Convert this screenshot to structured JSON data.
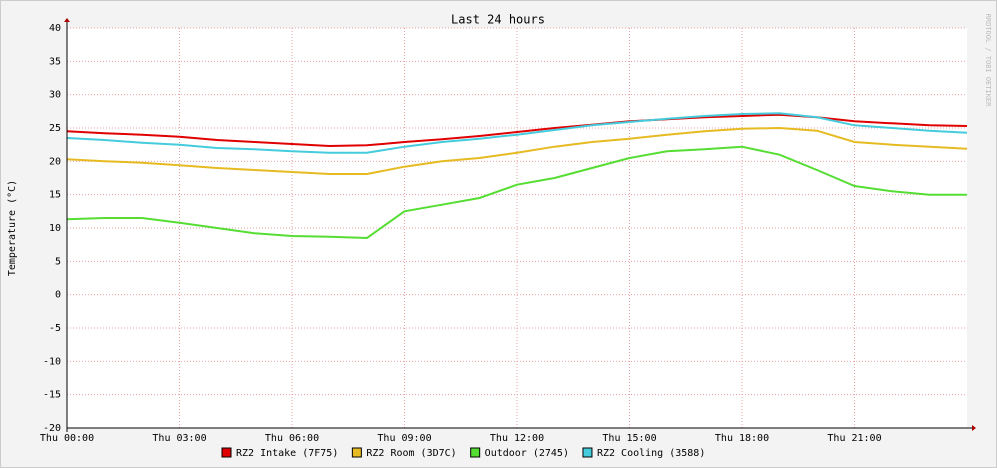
{
  "chart_data": {
    "type": "line",
    "title": "Last 24 hours",
    "y_label": "Temperature (°C)",
    "watermark": "RRDTOOL / TOBI OETIKER",
    "x": [
      0,
      1,
      2,
      3,
      4,
      5,
      6,
      7,
      8,
      9,
      10,
      11,
      12,
      13,
      14,
      15,
      16,
      17,
      18,
      19,
      20,
      21,
      22,
      23,
      24
    ],
    "xlim": [
      0,
      24
    ],
    "xticks": [
      {
        "value": 0,
        "label": "Thu 00:00"
      },
      {
        "value": 3,
        "label": "Thu 03:00"
      },
      {
        "value": 6,
        "label": "Thu 06:00"
      },
      {
        "value": 9,
        "label": "Thu 09:00"
      },
      {
        "value": 12,
        "label": "Thu 12:00"
      },
      {
        "value": 15,
        "label": "Thu 15:00"
      },
      {
        "value": 18,
        "label": "Thu 18:00"
      },
      {
        "value": 21,
        "label": "Thu 21:00"
      }
    ],
    "ylim": [
      -20,
      40
    ],
    "yticks": [
      -20,
      -15,
      -10,
      -5,
      0,
      5,
      10,
      15,
      20,
      25,
      30,
      35,
      40
    ],
    "grid": true,
    "legend": "bottom",
    "series": [
      {
        "name": "RZ2 Intake (7F75)",
        "color": "#e00000",
        "values": [
          24.5,
          24.2,
          24,
          23.7,
          23.2,
          22.9,
          22.6,
          22.3,
          22.4,
          22.9,
          23.3,
          23.8,
          24.4,
          25,
          25.5,
          26,
          26.3,
          26.6,
          26.8,
          27,
          26.6,
          26,
          25.7,
          25.4,
          25.3
        ]
      },
      {
        "name": "RZ2 Room (3D7C)",
        "color": "#e6bb22",
        "values": [
          20.3,
          20,
          19.8,
          19.4,
          19,
          18.7,
          18.4,
          18.1,
          18.1,
          19.2,
          20,
          20.5,
          21.3,
          22.2,
          22.9,
          23.4,
          24,
          24.5,
          24.9,
          25,
          24.6,
          22.9,
          22.5,
          22.2,
          21.9
        ]
      },
      {
        "name": "Outdoor (2745)",
        "color": "#55dd33",
        "values": [
          11.3,
          11.5,
          11.5,
          10.8,
          10,
          9.2,
          8.8,
          8.7,
          8.5,
          12.5,
          13.5,
          14.5,
          16.5,
          17.5,
          19,
          20.5,
          21.5,
          21.8,
          22.2,
          21,
          18.7,
          16.3,
          15.5,
          15,
          15
        ]
      },
      {
        "name": "RZ2 Cooling (3588)",
        "color": "#44ccdd",
        "values": [
          23.5,
          23.2,
          22.8,
          22.5,
          22,
          21.8,
          21.5,
          21.3,
          21.3,
          22.2,
          22.9,
          23.4,
          24,
          24.7,
          25.4,
          25.9,
          26.4,
          26.8,
          27.1,
          27.2,
          26.6,
          25.4,
          25,
          24.6,
          24.3
        ]
      }
    ]
  }
}
